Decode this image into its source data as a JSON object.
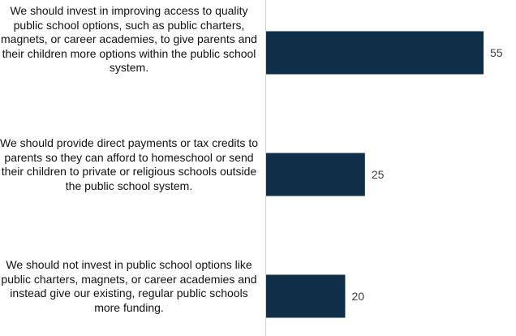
{
  "chart_data": {
    "type": "bar",
    "orientation": "horizontal",
    "categories": [
      "We should invest in improving access to quality public school options, such as public charters, magnets, or career academies, to give parents and their children more options within the public school system.",
      "We should provide direct payments or tax credits to parents so they can afford to homeschool or send their children to private or religious schools outside the public school system.",
      "We should not invest in public school options like public charters, magnets, or career academies and instead give our existing, regular public schools more funding."
    ],
    "values": [
      55,
      25,
      20
    ],
    "data_labels": [
      "55",
      "25",
      "20"
    ],
    "xlim": [
      0,
      60
    ],
    "grid": false,
    "legend": "none",
    "colors": {
      "bar": "#0e2f47",
      "axis": "#d0d0d0",
      "label": "#404040",
      "text": "#111111"
    }
  }
}
